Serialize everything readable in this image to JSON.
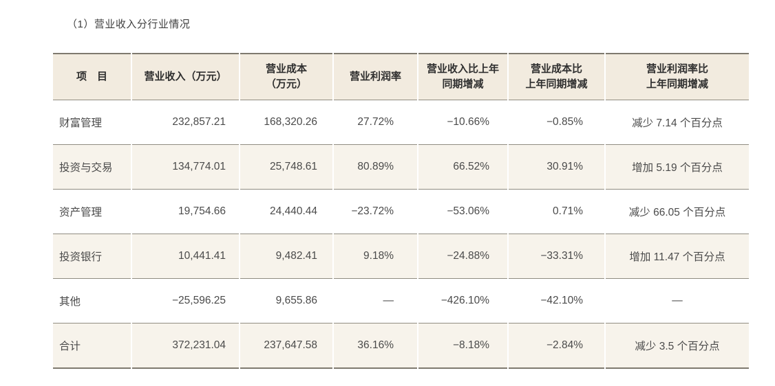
{
  "section": {
    "title": "（1）营业收入分行业情况"
  },
  "colors": {
    "header_background": "#f2ebdf",
    "alt_row_background": "#f7f3eb",
    "outer_border": "#7e796e",
    "inner_border": "#8f8b80",
    "text": "#4a4a4a"
  },
  "table": {
    "columns": [
      {
        "id": "item",
        "lines": [
          "项　目"
        ]
      },
      {
        "id": "revenue",
        "lines": [
          "营业收入（万元）"
        ]
      },
      {
        "id": "cost",
        "lines": [
          "营业成本",
          "（万元）"
        ]
      },
      {
        "id": "profit-margin",
        "lines": [
          "营业利润率"
        ]
      },
      {
        "id": "revenue-yoy",
        "lines": [
          "营业收入比上年",
          "同期增减"
        ]
      },
      {
        "id": "cost-yoy",
        "lines": [
          "营业成本比",
          "上年同期增减"
        ]
      },
      {
        "id": "margin-yoy",
        "lines": [
          "营业利润率比",
          "上年同期增减"
        ]
      }
    ],
    "rows": [
      {
        "id": "wealth-management",
        "cells": [
          "财富管理",
          "232,857.21",
          "168,320.26",
          "27.72%",
          "−10.66%",
          "−0.85%",
          "减少 7.14 个百分点"
        ]
      },
      {
        "id": "investment-trading",
        "cells": [
          "投资与交易",
          "134,774.01",
          "25,748.61",
          "80.89%",
          "66.52%",
          "30.91%",
          "增加 5.19 个百分点"
        ]
      },
      {
        "id": "asset-management",
        "cells": [
          "资产管理",
          "19,754.66",
          "24,440.44",
          "−23.72%",
          "−53.06%",
          "0.71%",
          "减少 66.05 个百分点"
        ]
      },
      {
        "id": "investment-banking",
        "cells": [
          "投资银行",
          "10,441.41",
          "9,482.41",
          "9.18%",
          "−24.88%",
          "−33.31%",
          "增加 11.47 个百分点"
        ]
      },
      {
        "id": "other",
        "cells": [
          "其他",
          "−25,596.25",
          "9,655.86",
          "—",
          "−426.10%",
          "−42.10%",
          "—"
        ]
      },
      {
        "id": "total",
        "cells": [
          "合计",
          "372,231.04",
          "237,647.58",
          "36.16%",
          "−8.18%",
          "−2.84%",
          "减少 3.5 个百分点"
        ]
      }
    ]
  }
}
